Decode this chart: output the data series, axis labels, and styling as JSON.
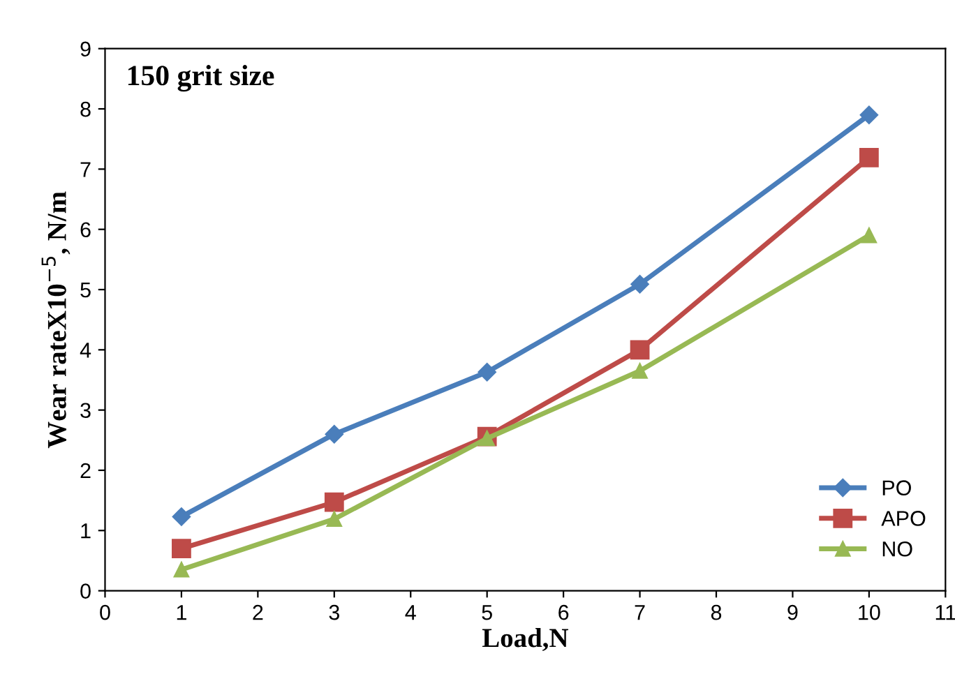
{
  "chart_data": {
    "type": "line",
    "xlabel": "Load,N",
    "ylabel": "Wear rateX10$^{−5}$, N/m",
    "annotations": [
      "150 grit size"
    ],
    "x": [
      1,
      3,
      5,
      7,
      10
    ],
    "series": [
      {
        "name": "PO",
        "color": "#4a7ebb",
        "marker": "diamond",
        "values": [
          1.23,
          2.6,
          3.63,
          5.09,
          7.9
        ]
      },
      {
        "name": "APO",
        "color": "#be4b48",
        "marker": "square",
        "values": [
          0.7,
          1.47,
          2.56,
          4.0,
          7.19
        ]
      },
      {
        "name": "NO",
        "color": "#98b954",
        "marker": "triangle",
        "values": [
          0.35,
          1.19,
          2.53,
          3.65,
          5.9
        ]
      }
    ],
    "xlim": [
      0,
      11
    ],
    "xticks": [
      0,
      1,
      2,
      3,
      4,
      5,
      6,
      7,
      8,
      9,
      10,
      11
    ],
    "ylim": [
      0,
      9
    ],
    "yticks": [
      0,
      1,
      2,
      3,
      4,
      5,
      6,
      7,
      8,
      9
    ],
    "grid": false,
    "legend": "bottom right",
    "line_style": "solid"
  }
}
